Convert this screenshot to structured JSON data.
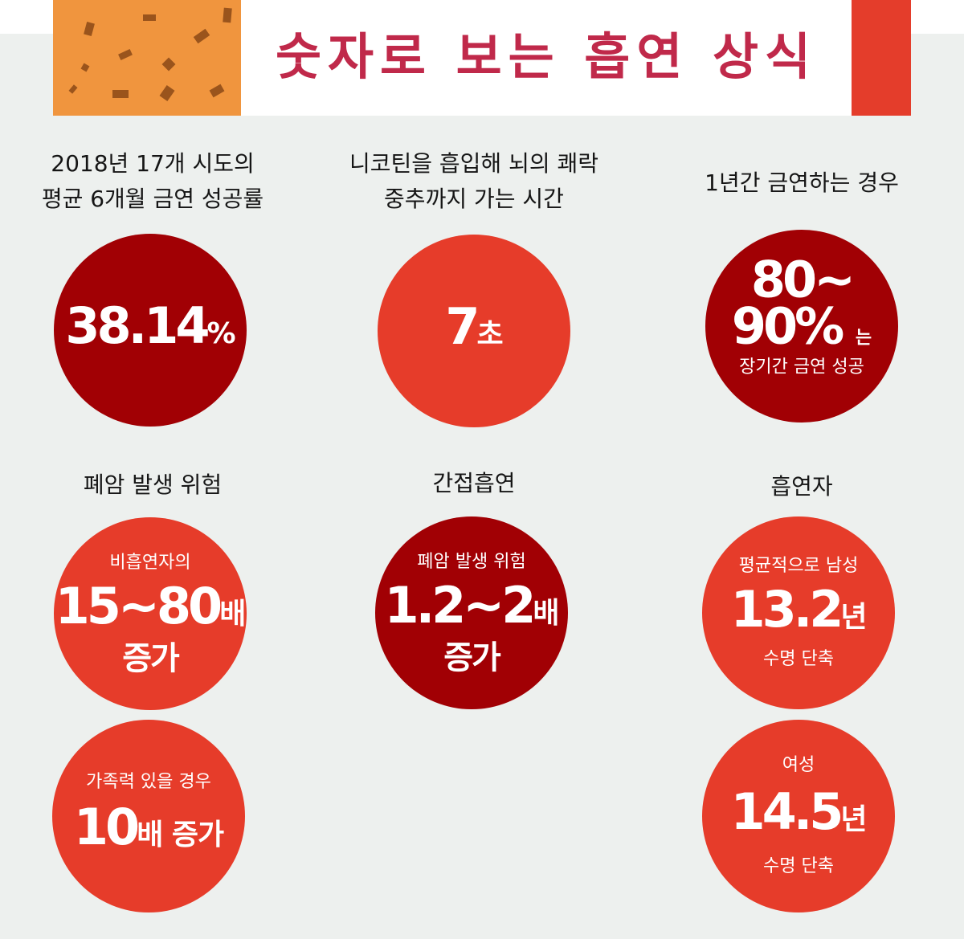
{
  "header": {
    "title": "숫자로 보는 흡연 상식"
  },
  "colors": {
    "background": "#edf0ee",
    "dark_red": "#a10004",
    "bright_red": "#e63c2a",
    "orange": "#f0953e",
    "title": "#c0294a"
  },
  "cards": [
    {
      "label_line1": "2018년 17개 시도의",
      "label_line2": "평균 6개월 금연 성공률",
      "value": "38.14",
      "unit": "%"
    },
    {
      "label_line1": "니코틴을 흡입해 뇌의 쾌락",
      "label_line2": "중추까지 가는 시간",
      "value": "7",
      "unit": "초"
    },
    {
      "label": "1년간 금연하는 경우",
      "value_line1": "80~",
      "value_line2": "90%",
      "suffix": "는",
      "caption": "장기간 금연 성공"
    },
    {
      "label": "폐암 발생 위험",
      "caption": "비흡연자의",
      "value": "15~80",
      "unit": "배",
      "note": "증가"
    },
    {
      "label": "간접흡연",
      "caption": "폐암 발생 위험",
      "value": "1.2~2",
      "unit": "배",
      "note": "증가"
    },
    {
      "label": "흡연자",
      "caption": "평균적으로 남성",
      "value": "13.2",
      "unit": "년",
      "note": "수명 단축"
    }
  ],
  "extra": [
    {
      "caption": "가족력 있을 경우",
      "value": "10",
      "unit": "배 증가"
    },
    {
      "caption": "여성",
      "value": "14.5",
      "unit": "년",
      "note": "수명 단축"
    }
  ]
}
